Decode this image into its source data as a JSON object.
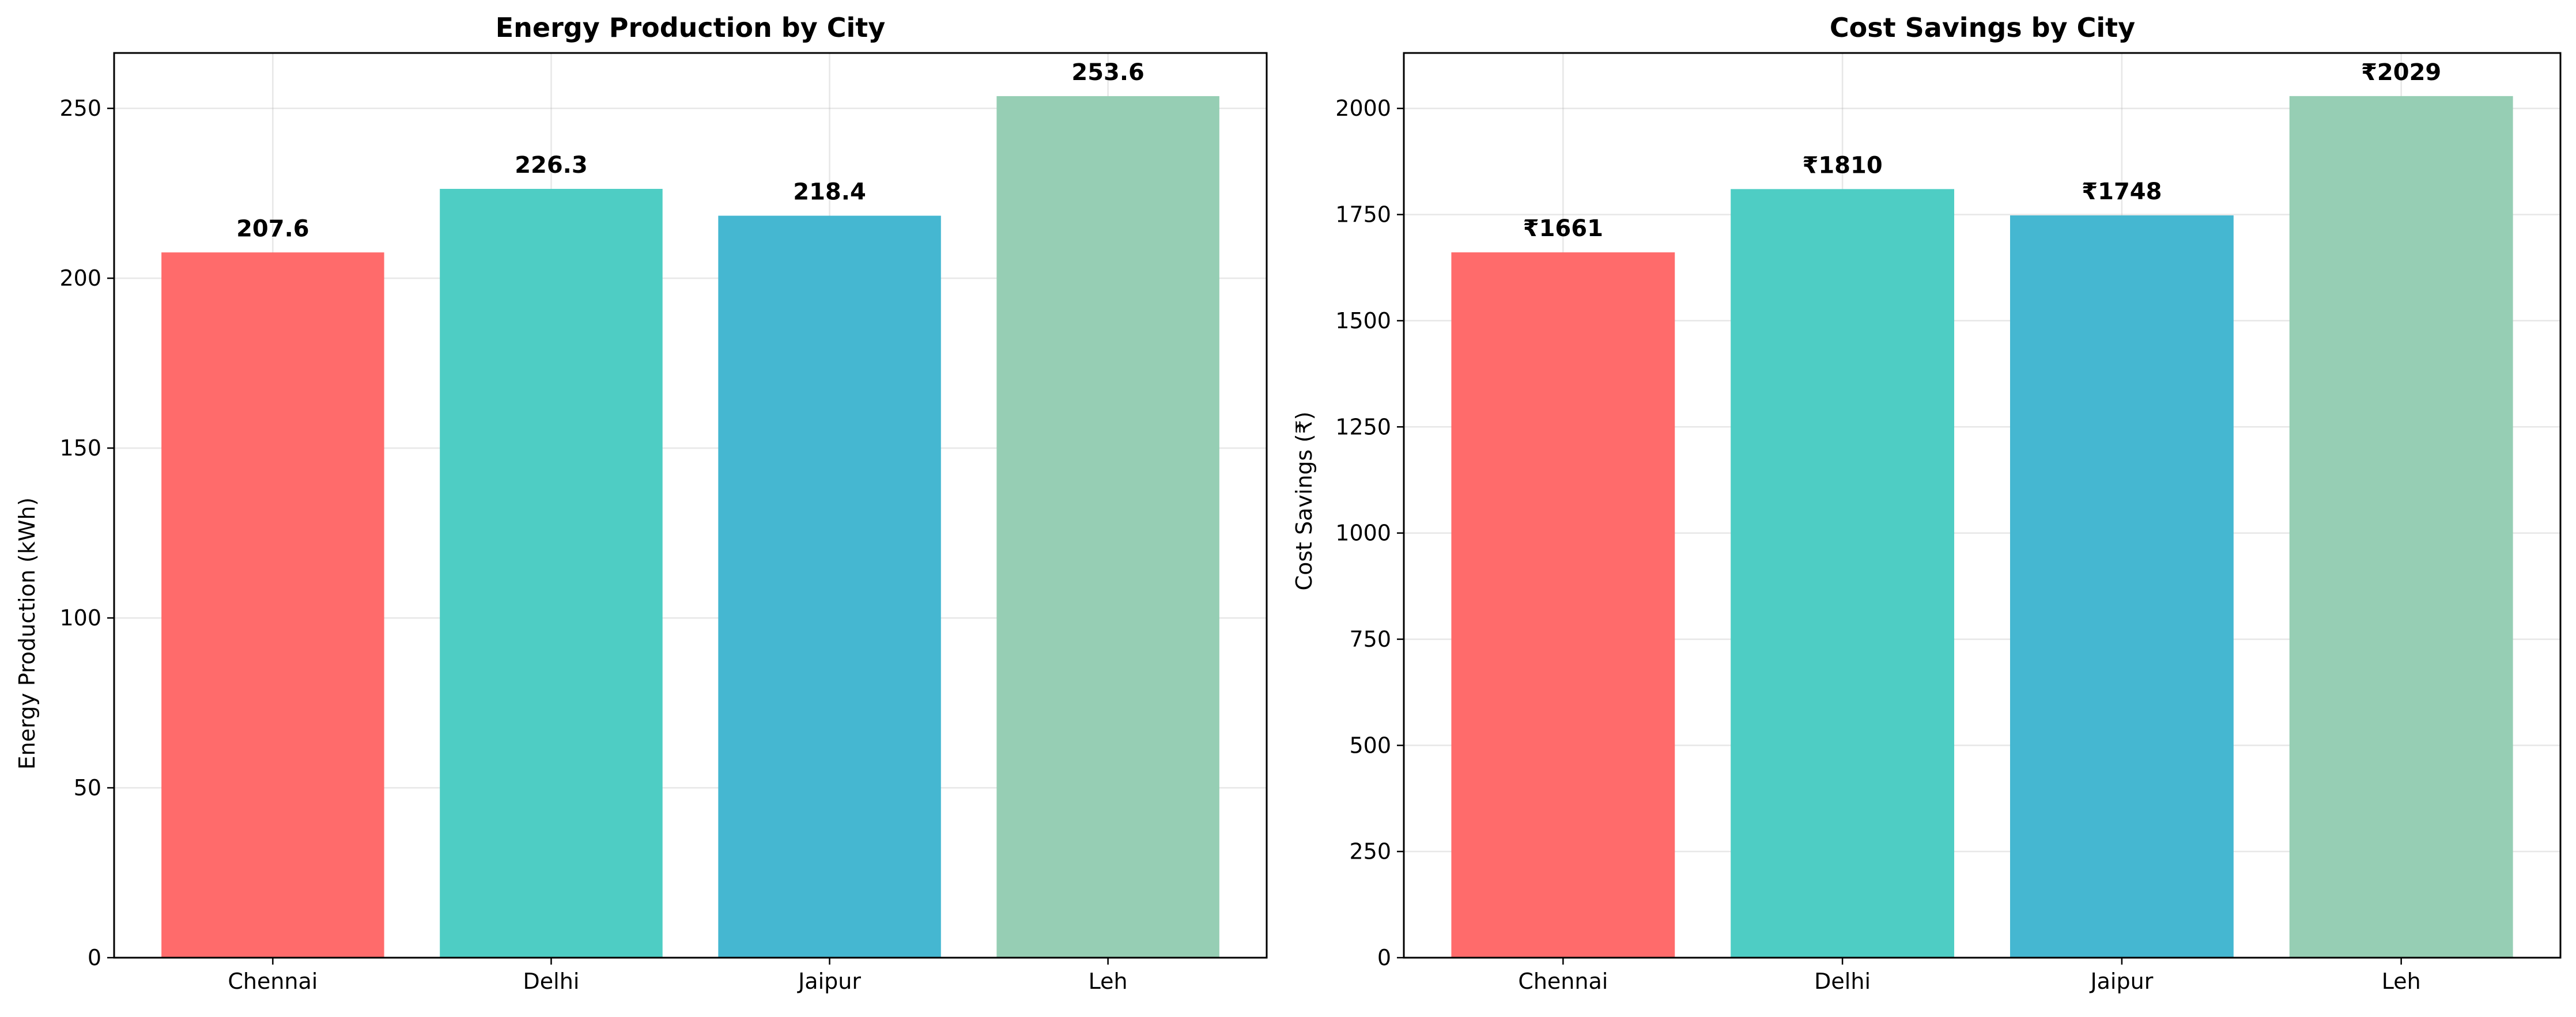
{
  "chart_data": [
    {
      "type": "bar",
      "title": "Energy Production by City",
      "xlabel": "",
      "ylabel": "Energy Production (kWh)",
      "categories": [
        "Chennai",
        "Delhi",
        "Jaipur",
        "Leh"
      ],
      "values": [
        207.6,
        226.3,
        218.4,
        253.6
      ],
      "data_labels": [
        "207.6",
        "226.3",
        "218.4",
        "253.6"
      ],
      "colors": [
        "#ff6b6b",
        "#4ecdc4",
        "#45b7d1",
        "#96ceb4"
      ],
      "bar_alpha": 1,
      "ylim": [
        0,
        266.3
      ],
      "yticks": [
        0,
        50,
        100,
        150,
        200,
        250
      ],
      "grid": true,
      "legend": "none"
    },
    {
      "type": "bar",
      "title": "Cost Savings by City",
      "xlabel": "",
      "ylabel": "Cost Savings (₹)",
      "categories": [
        "Chennai",
        "Delhi",
        "Jaipur",
        "Leh"
      ],
      "values": [
        1661,
        1810,
        1748,
        2029
      ],
      "data_labels": [
        "₹1661",
        "₹1810",
        "₹1748",
        "₹2029"
      ],
      "colors": [
        "#ff6b6b",
        "#4ecdc4",
        "#45b7d1",
        "#96ceb4"
      ],
      "bar_alpha": 1,
      "ylim": [
        0,
        2130.5
      ],
      "yticks": [
        0,
        250,
        500,
        750,
        1000,
        1250,
        1500,
        1750,
        2000
      ],
      "grid": true,
      "legend": "none"
    }
  ]
}
